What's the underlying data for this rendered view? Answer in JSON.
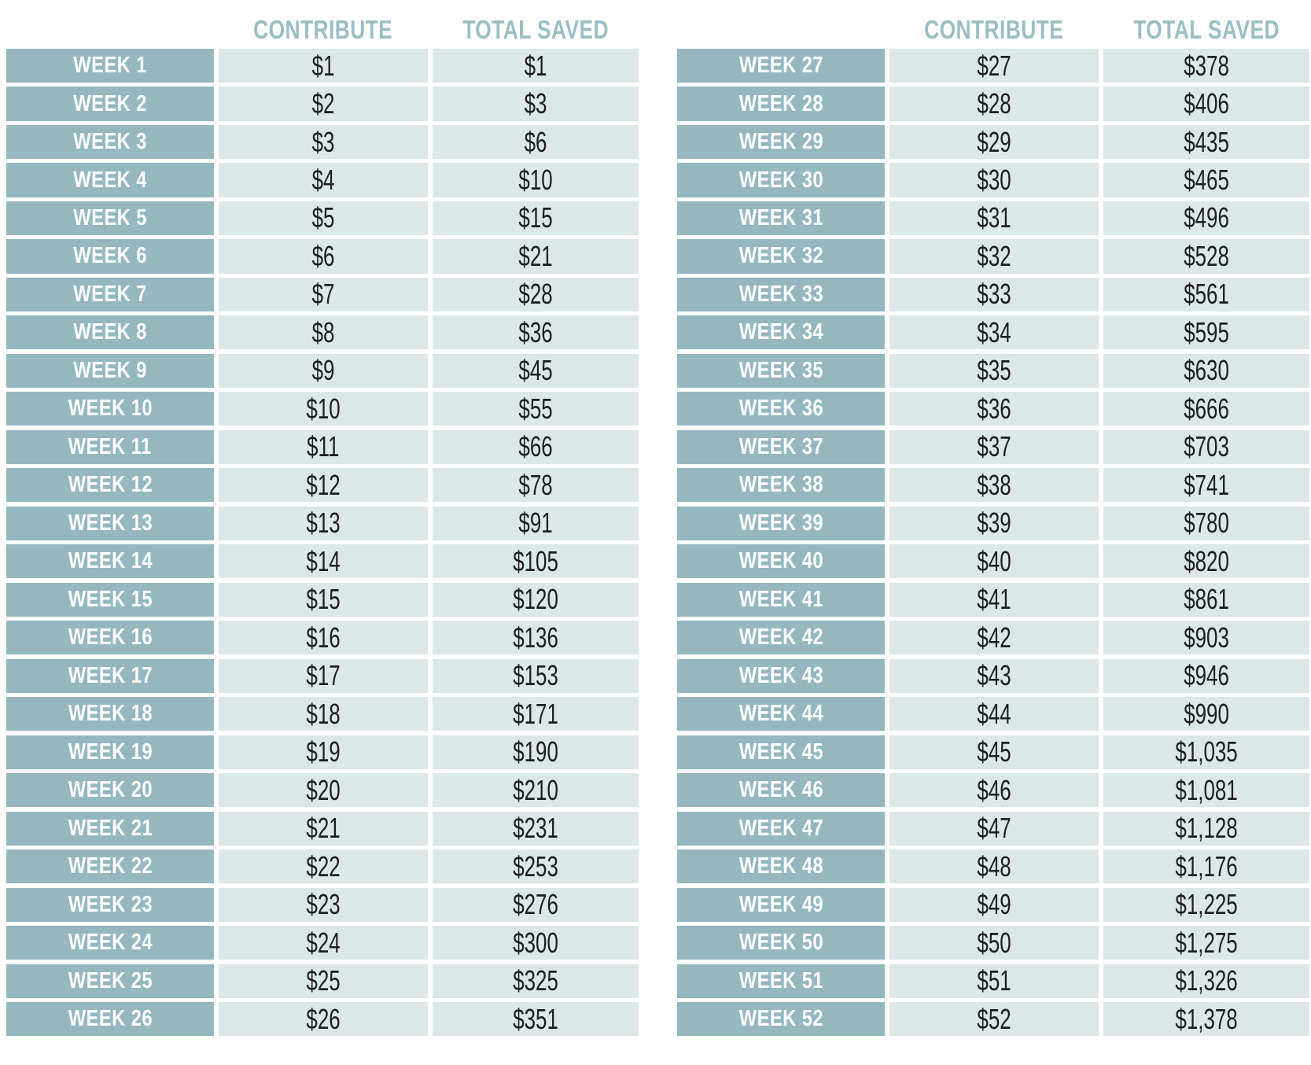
{
  "colors": {
    "week_cell_background": "#95b8be",
    "value_cell_background": "#dde7e8",
    "header_text": "#9cbdc3",
    "week_label_text": "#ffffff",
    "value_text": "#1e1e1e",
    "page_background": "#ffffff"
  },
  "tables": [
    {
      "name": "weeks-1-26",
      "headers": {
        "contribute": "CONTRIBUTE",
        "total_saved": "TOTAL SAVED"
      },
      "rows": [
        {
          "week": "WEEK 1",
          "contribute": "$1",
          "total_saved": "$1"
        },
        {
          "week": "WEEK 2",
          "contribute": "$2",
          "total_saved": "$3"
        },
        {
          "week": "WEEK 3",
          "contribute": "$3",
          "total_saved": "$6"
        },
        {
          "week": "WEEK 4",
          "contribute": "$4",
          "total_saved": "$10"
        },
        {
          "week": "WEEK 5",
          "contribute": "$5",
          "total_saved": "$15"
        },
        {
          "week": "WEEK 6",
          "contribute": "$6",
          "total_saved": "$21"
        },
        {
          "week": "WEEK 7",
          "contribute": "$7",
          "total_saved": "$28"
        },
        {
          "week": "WEEK 8",
          "contribute": "$8",
          "total_saved": "$36"
        },
        {
          "week": "WEEK 9",
          "contribute": "$9",
          "total_saved": "$45"
        },
        {
          "week": "WEEK 10",
          "contribute": "$10",
          "total_saved": "$55"
        },
        {
          "week": "WEEK 11",
          "contribute": "$11",
          "total_saved": "$66"
        },
        {
          "week": "WEEK 12",
          "contribute": "$12",
          "total_saved": "$78"
        },
        {
          "week": "WEEK 13",
          "contribute": "$13",
          "total_saved": "$91"
        },
        {
          "week": "WEEK 14",
          "contribute": "$14",
          "total_saved": "$105"
        },
        {
          "week": "WEEK 15",
          "contribute": "$15",
          "total_saved": "$120"
        },
        {
          "week": "WEEK 16",
          "contribute": "$16",
          "total_saved": "$136"
        },
        {
          "week": "WEEK 17",
          "contribute": "$17",
          "total_saved": "$153"
        },
        {
          "week": "WEEK 18",
          "contribute": "$18",
          "total_saved": "$171"
        },
        {
          "week": "WEEK 19",
          "contribute": "$19",
          "total_saved": "$190"
        },
        {
          "week": "WEEK 20",
          "contribute": "$20",
          "total_saved": "$210"
        },
        {
          "week": "WEEK 21",
          "contribute": "$21",
          "total_saved": "$231"
        },
        {
          "week": "WEEK 22",
          "contribute": "$22",
          "total_saved": "$253"
        },
        {
          "week": "WEEK 23",
          "contribute": "$23",
          "total_saved": "$276"
        },
        {
          "week": "WEEK 24",
          "contribute": "$24",
          "total_saved": "$300"
        },
        {
          "week": "WEEK 25",
          "contribute": "$25",
          "total_saved": "$325"
        },
        {
          "week": "WEEK 26",
          "contribute": "$26",
          "total_saved": "$351"
        }
      ]
    },
    {
      "name": "weeks-27-52",
      "headers": {
        "contribute": "CONTRIBUTE",
        "total_saved": "TOTAL SAVED"
      },
      "rows": [
        {
          "week": "WEEK 27",
          "contribute": "$27",
          "total_saved": "$378"
        },
        {
          "week": "WEEK 28",
          "contribute": "$28",
          "total_saved": "$406"
        },
        {
          "week": "WEEK 29",
          "contribute": "$29",
          "total_saved": "$435"
        },
        {
          "week": "WEEK 30",
          "contribute": "$30",
          "total_saved": "$465"
        },
        {
          "week": "WEEK 31",
          "contribute": "$31",
          "total_saved": "$496"
        },
        {
          "week": "WEEK 32",
          "contribute": "$32",
          "total_saved": "$528"
        },
        {
          "week": "WEEK 33",
          "contribute": "$33",
          "total_saved": "$561"
        },
        {
          "week": "WEEK 34",
          "contribute": "$34",
          "total_saved": "$595"
        },
        {
          "week": "WEEK 35",
          "contribute": "$35",
          "total_saved": "$630"
        },
        {
          "week": "WEEK 36",
          "contribute": "$36",
          "total_saved": "$666"
        },
        {
          "week": "WEEK 37",
          "contribute": "$37",
          "total_saved": "$703"
        },
        {
          "week": "WEEK 38",
          "contribute": "$38",
          "total_saved": "$741"
        },
        {
          "week": "WEEK 39",
          "contribute": "$39",
          "total_saved": "$780"
        },
        {
          "week": "WEEK 40",
          "contribute": "$40",
          "total_saved": "$820"
        },
        {
          "week": "WEEK 41",
          "contribute": "$41",
          "total_saved": "$861"
        },
        {
          "week": "WEEK 42",
          "contribute": "$42",
          "total_saved": "$903"
        },
        {
          "week": "WEEK 43",
          "contribute": "$43",
          "total_saved": "$946"
        },
        {
          "week": "WEEK 44",
          "contribute": "$44",
          "total_saved": "$990"
        },
        {
          "week": "WEEK 45",
          "contribute": "$45",
          "total_saved": "$1,035"
        },
        {
          "week": "WEEK 46",
          "contribute": "$46",
          "total_saved": "$1,081"
        },
        {
          "week": "WEEK 47",
          "contribute": "$47",
          "total_saved": "$1,128"
        },
        {
          "week": "WEEK 48",
          "contribute": "$48",
          "total_saved": "$1,176"
        },
        {
          "week": "WEEK 49",
          "contribute": "$49",
          "total_saved": "$1,225"
        },
        {
          "week": "WEEK 50",
          "contribute": "$50",
          "total_saved": "$1,275"
        },
        {
          "week": "WEEK 51",
          "contribute": "$51",
          "total_saved": "$1,326"
        },
        {
          "week": "WEEK 52",
          "contribute": "$52",
          "total_saved": "$1,378"
        }
      ]
    }
  ]
}
